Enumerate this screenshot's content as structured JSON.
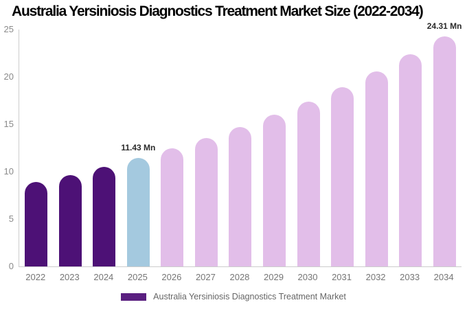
{
  "title": "Australia Yersiniosis Diagnostics Treatment Market Size (2022-2034)",
  "chart_data": {
    "type": "bar",
    "title": "Australia Yersiniosis Diagnostics Treatment Market Size (2022-2034)",
    "categories": [
      "2022",
      "2023",
      "2024",
      "2025",
      "2026",
      "2027",
      "2028",
      "2029",
      "2030",
      "2031",
      "2032",
      "2033",
      "2034"
    ],
    "values": [
      8.89,
      9.66,
      10.51,
      11.43,
      12.43,
      13.52,
      14.7,
      15.99,
      17.39,
      18.91,
      20.56,
      22.36,
      24.31
    ],
    "unit": "Mn",
    "xlabel": "",
    "ylabel": "",
    "ylim": [
      0,
      25
    ],
    "yticks": [
      0,
      5,
      10,
      15,
      20,
      25
    ],
    "grid": false,
    "bar_colors": [
      "#4D1176",
      "#4D1176",
      "#4D1176",
      "#A4C9DF",
      "#E2BEE9",
      "#E2BEE9",
      "#E2BEE9",
      "#E2BEE9",
      "#E2BEE9",
      "#E2BEE9",
      "#E2BEE9",
      "#E2BEE9",
      "#E2BEE9"
    ],
    "value_labels": {
      "2025": "11.43 Mn",
      "2034": "24.31 Mn"
    },
    "legend": {
      "label": "Australia Yersiniosis Diagnostics Treatment Market",
      "swatch_color": "#5A1F80",
      "position": "bottom"
    }
  },
  "colors": {
    "historical_bar": "#4D1176",
    "base_year_bar": "#A4C9DF",
    "forecast_bar": "#E2BEE9",
    "axis_line": "#CCCCCC",
    "axis_text": "#8A8A8A",
    "value_label_text": "#2B2B2B",
    "legend_text": "#666666",
    "title_text": "#000000",
    "background": "#FFFFFF"
  }
}
